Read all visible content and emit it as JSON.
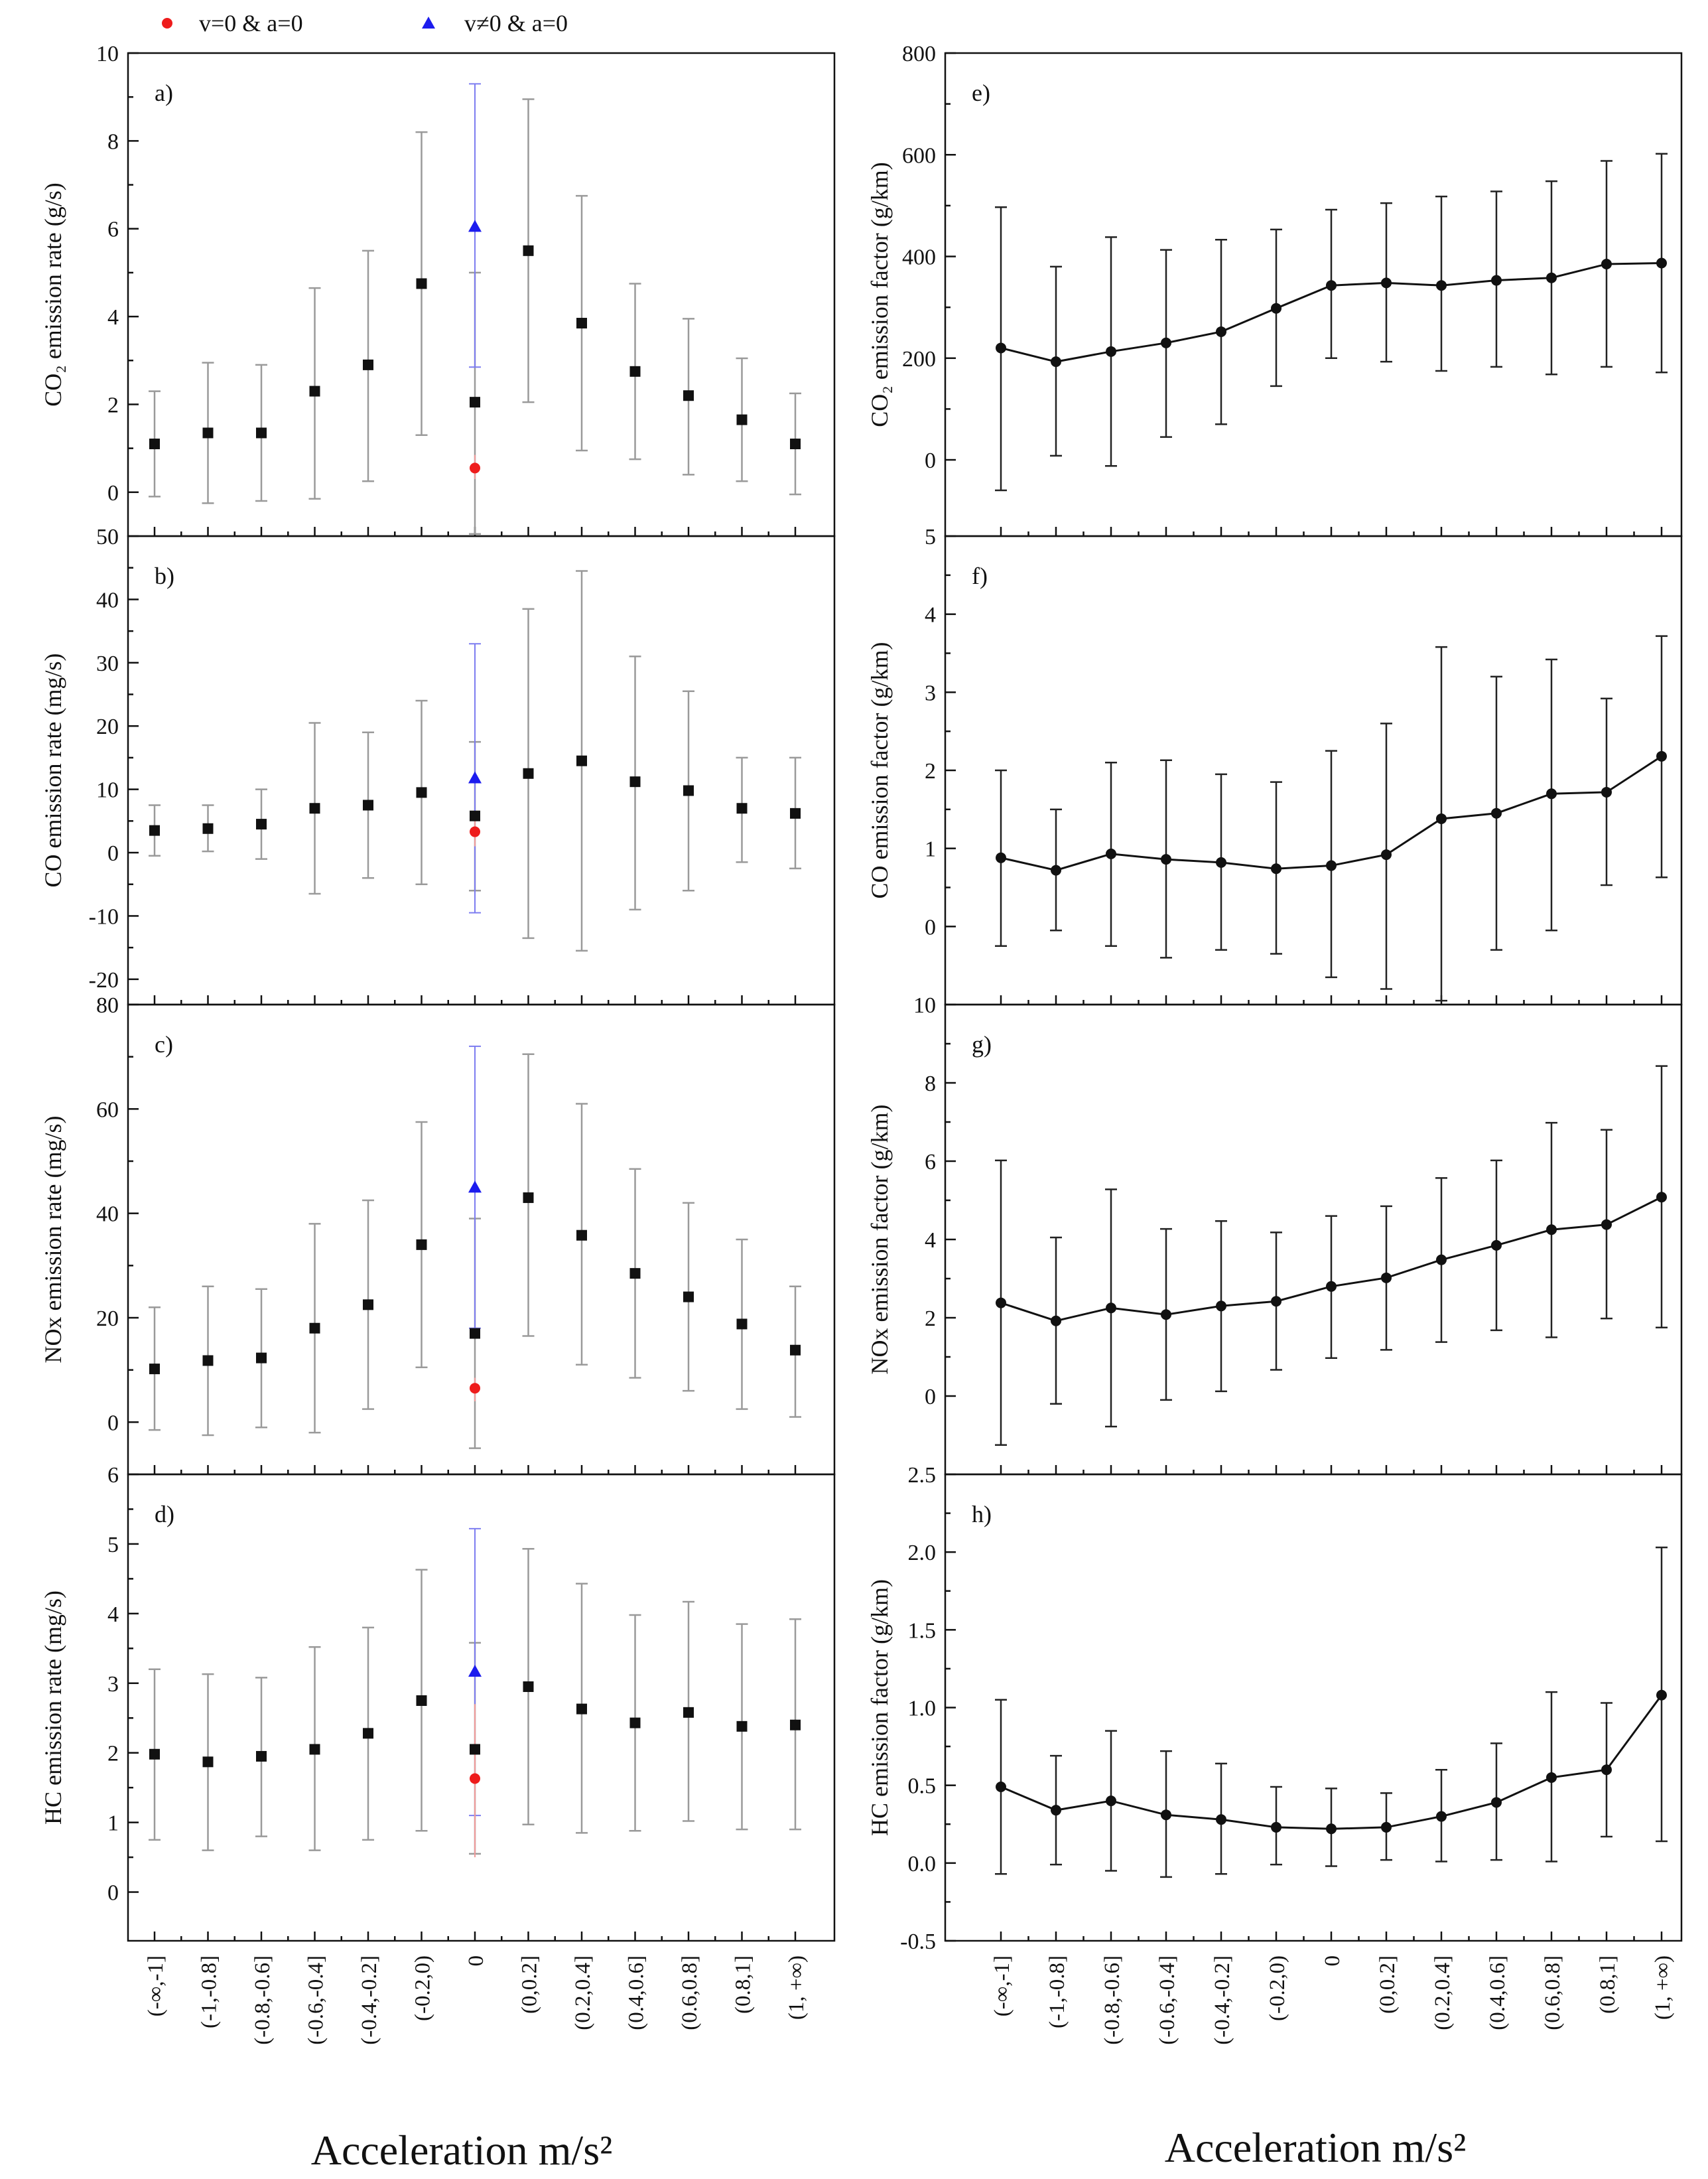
{
  "legend": [
    {
      "label": "v=0 & a=0",
      "color": "#ee1c1c",
      "marker": "circle"
    },
    {
      "label": "v≠0 & a=0",
      "color": "#1c1cee",
      "marker": "triangle"
    }
  ],
  "xlabel_left": "Acceleration  m/s²",
  "xlabel_right": "Acceleration  m/s²",
  "colors": {
    "black_series": "#111111",
    "error_grey": "#9a9a9a",
    "red": "#ee1c1c",
    "blue": "#1c1cee"
  },
  "chart_data": [
    {
      "type": "scatter",
      "panel": "a)",
      "ylabel": "CO₂ emission rate (g/s)",
      "ylim": [
        -1,
        10
      ],
      "yticks": [
        0,
        2,
        4,
        6,
        8,
        10
      ],
      "yticklabels": [
        "0",
        "2",
        "4",
        "6",
        "8",
        "10"
      ],
      "categories": [
        "(-∞,-1]",
        "(-1,-0.8]",
        "(-0.8,-0.6]",
        "(-0.6,-0.4]",
        "(-0.4,-0.2]",
        "(-0.2,0)",
        "0",
        "(0,0.2]",
        "(0.2,0.4]",
        "(0.4,0.6]",
        "(0.6,0.8]",
        "(0.8,1]",
        "(1, +∞)"
      ],
      "values": [
        1.1,
        1.35,
        1.35,
        2.3,
        2.9,
        4.75,
        2.05,
        5.5,
        3.85,
        2.75,
        2.2,
        1.65,
        1.1
      ],
      "err_low": [
        -0.1,
        -0.25,
        -0.2,
        -0.15,
        0.25,
        1.3,
        -0.95,
        2.05,
        0.95,
        0.75,
        0.4,
        0.25,
        -0.05
      ],
      "err_high": [
        2.3,
        2.95,
        2.9,
        4.65,
        5.5,
        8.2,
        5.0,
        8.95,
        6.75,
        4.75,
        3.95,
        3.05,
        2.25
      ],
      "stationary": {
        "value": 0.55,
        "low": 0.3,
        "high": 0.85
      },
      "cruise": {
        "value": 6.05,
        "low": 2.85,
        "high": 9.3
      }
    },
    {
      "type": "scatter",
      "panel": "b)",
      "ylabel": "CO emission rate (mg/s)",
      "ylim": [
        -24,
        50
      ],
      "yticks": [
        -20,
        -10,
        0,
        10,
        20,
        30,
        40,
        50
      ],
      "yticklabels": [
        "-20",
        "-10",
        "0",
        "10",
        "20",
        "30",
        "40",
        "50"
      ],
      "categories": [
        "(-∞,-1]",
        "(-1,-0.8]",
        "(-0.8,-0.6]",
        "(-0.6,-0.4]",
        "(-0.4,-0.2]",
        "(-0.2,0)",
        "0",
        "(0,0.2]",
        "(0.2,0.4]",
        "(0.4,0.6]",
        "(0.6,0.8]",
        "(0.8,1]",
        "(1, +∞)"
      ],
      "values": [
        3.5,
        3.8,
        4.5,
        7.0,
        7.5,
        9.5,
        5.8,
        12.5,
        14.5,
        11.2,
        9.8,
        7.0,
        6.2
      ],
      "err_low": [
        -0.5,
        0.2,
        -1.0,
        -6.5,
        -4.0,
        -5.0,
        -6.0,
        -13.5,
        -15.5,
        -9.0,
        -6.0,
        -1.5,
        -2.5
      ],
      "err_high": [
        7.5,
        7.5,
        10.0,
        20.5,
        19.0,
        24.0,
        17.5,
        38.5,
        44.5,
        31.0,
        25.5,
        15.0,
        15.0
      ],
      "stationary": {
        "value": 3.3,
        "low": 1.0,
        "high": 5.5
      },
      "cruise": {
        "value": 11.8,
        "low": -9.5,
        "high": 33.0
      }
    },
    {
      "type": "scatter",
      "panel": "c)",
      "ylabel": "NOx emission rate (mg/s)",
      "ylim": [
        -10,
        80
      ],
      "yticks": [
        0,
        20,
        40,
        60,
        80
      ],
      "yticklabels": [
        "0",
        "20",
        "40",
        "60",
        "80"
      ],
      "categories": [
        "(-∞,-1]",
        "(-1,-0.8]",
        "(-0.8,-0.6]",
        "(-0.6,-0.4]",
        "(-0.4,-0.2]",
        "(-0.2,0)",
        "0",
        "(0,0.2]",
        "(0.2,0.4]",
        "(0.4,0.6]",
        "(0.6,0.8]",
        "(0.8,1]",
        "(1, +∞)"
      ],
      "values": [
        10.2,
        11.8,
        12.3,
        18.0,
        22.5,
        34.0,
        17.0,
        43.0,
        35.8,
        28.5,
        24.0,
        18.8,
        13.8
      ],
      "err_low": [
        -1.5,
        -2.5,
        -1.0,
        -2.0,
        2.5,
        10.5,
        -5.0,
        16.5,
        11.0,
        8.5,
        6.0,
        2.5,
        1.0
      ],
      "err_high": [
        22.0,
        26.0,
        25.5,
        38.0,
        42.5,
        57.5,
        39.0,
        70.5,
        61.0,
        48.5,
        42.0,
        35.0,
        26.0
      ],
      "stationary": {
        "value": 6.5,
        "low": 4.0,
        "high": 8.5
      },
      "cruise": {
        "value": 45.0,
        "low": 18.0,
        "high": 72.0
      }
    },
    {
      "type": "scatter",
      "panel": "d)",
      "ylabel": "HC emission rate (mg/s)",
      "ylim": [
        -0.7,
        6
      ],
      "yticks": [
        0,
        1,
        2,
        3,
        4,
        5,
        6
      ],
      "yticklabels": [
        "0",
        "1",
        "2",
        "3",
        "4",
        "5",
        "6"
      ],
      "categories": [
        "(-∞,-1]",
        "(-1,-0.8]",
        "(-0.8,-0.6]",
        "(-0.6,-0.4]",
        "(-0.4,-0.2]",
        "(-0.2,0)",
        "0",
        "(0,0.2]",
        "(0.2,0.4]",
        "(0.4,0.6]",
        "(0.6,0.8]",
        "(0.8,1]",
        "(1, +∞)"
      ],
      "values": [
        1.98,
        1.87,
        1.95,
        2.05,
        2.28,
        2.75,
        2.05,
        2.95,
        2.63,
        2.43,
        2.58,
        2.38,
        2.4
      ],
      "err_low": [
        0.75,
        0.6,
        0.8,
        0.6,
        0.75,
        0.88,
        0.55,
        0.97,
        0.85,
        0.88,
        1.02,
        0.9,
        0.9
      ],
      "err_high": [
        3.2,
        3.13,
        3.08,
        3.52,
        3.8,
        4.63,
        3.58,
        4.93,
        4.43,
        3.98,
        4.17,
        3.85,
        3.92
      ],
      "stationary": {
        "value": 1.63,
        "low": 0.5,
        "high": 2.7
      },
      "cruise": {
        "value": 3.17,
        "low": 1.1,
        "high": 5.22
      }
    },
    {
      "type": "line",
      "panel": "e)",
      "ylabel": "CO₂ emission factor (g/km)",
      "ylim": [
        -150,
        800
      ],
      "yticks": [
        0,
        200,
        400,
        600,
        800
      ],
      "yticklabels": [
        "0",
        "200",
        "400",
        "600",
        "800"
      ],
      "categories": [
        "(-∞,-1]",
        "(-1,-0.8]",
        "(-0.8,-0.6]",
        "(-0.6,-0.4]",
        "(-0.4,-0.2]",
        "(-0.2,0)",
        "0",
        "(0,0.2]",
        "(0.2,0.4]",
        "(0.4,0.6]",
        "(0.6,0.8]",
        "(0.8,1]",
        "(1, +∞)"
      ],
      "values": [
        220,
        193,
        213,
        230,
        252,
        298,
        343,
        348,
        343,
        353,
        358,
        385,
        387
      ],
      "err_low": [
        -60,
        8,
        -12,
        45,
        70,
        145,
        200,
        193,
        175,
        183,
        168,
        183,
        172
      ],
      "err_high": [
        497,
        380,
        438,
        413,
        433,
        453,
        492,
        505,
        518,
        528,
        548,
        588,
        602
      ]
    },
    {
      "type": "line",
      "panel": "f)",
      "ylabel": "CO emission factor (g/km)",
      "ylim": [
        -1,
        5
      ],
      "yticks": [
        0,
        1,
        2,
        3,
        4,
        5
      ],
      "yticklabels": [
        "0",
        "1",
        "2",
        "3",
        "4",
        "5"
      ],
      "categories": [
        "(-∞,-1]",
        "(-1,-0.8]",
        "(-0.8,-0.6]",
        "(-0.6,-0.4]",
        "(-0.4,-0.2]",
        "(-0.2,0)",
        "0",
        "(0,0.2]",
        "(0.2,0.4]",
        "(0.4,0.6]",
        "(0.6,0.8]",
        "(0.8,1]",
        "(1, +∞)"
      ],
      "values": [
        0.88,
        0.72,
        0.93,
        0.86,
        0.82,
        0.74,
        0.78,
        0.92,
        1.38,
        1.45,
        1.7,
        1.72,
        2.18
      ],
      "err_low": [
        -0.25,
        -0.05,
        -0.25,
        -0.4,
        -0.3,
        -0.35,
        -0.65,
        -0.8,
        -0.95,
        -0.3,
        -0.05,
        0.53,
        0.63
      ],
      "err_high": [
        2.0,
        1.5,
        2.1,
        2.13,
        1.95,
        1.85,
        2.25,
        2.6,
        3.58,
        3.2,
        3.42,
        2.92,
        3.72
      ]
    },
    {
      "type": "line",
      "panel": "g)",
      "ylabel": "NOx emission factor (g/km)",
      "ylim": [
        -2,
        10
      ],
      "yticks": [
        0,
        2,
        4,
        6,
        8,
        10
      ],
      "yticklabels": [
        "0",
        "2",
        "4",
        "6",
        "8",
        "10"
      ],
      "categories": [
        "(-∞,-1]",
        "(-1,-0.8]",
        "(-0.8,-0.6]",
        "(-0.6,-0.4]",
        "(-0.4,-0.2]",
        "(-0.2,0)",
        "0",
        "(0,0.2]",
        "(0.2,0.4]",
        "(0.4,0.6]",
        "(0.6,0.8]",
        "(0.8,1]",
        "(1, +∞)"
      ],
      "values": [
        2.38,
        1.92,
        2.25,
        2.08,
        2.3,
        2.42,
        2.8,
        3.02,
        3.48,
        3.85,
        4.25,
        4.38,
        5.08
      ],
      "err_low": [
        -1.25,
        -0.2,
        -0.78,
        -0.1,
        0.12,
        0.67,
        0.97,
        1.18,
        1.38,
        1.68,
        1.5,
        1.98,
        1.75
      ],
      "err_high": [
        6.02,
        4.05,
        5.28,
        4.27,
        4.47,
        4.18,
        4.6,
        4.85,
        5.57,
        6.02,
        6.98,
        6.8,
        8.43
      ]
    },
    {
      "type": "line",
      "panel": "h)",
      "ylabel": "HC emission factor (g/km)",
      "ylim": [
        -0.5,
        2.5
      ],
      "yticks": [
        -0.5,
        0.0,
        0.5,
        1.0,
        1.5,
        2.0,
        2.5
      ],
      "yticklabels": [
        "-0.5",
        "0.0",
        "0.5",
        "1.0",
        "1.5",
        "2.0",
        "2.5"
      ],
      "categories": [
        "(-∞,-1]",
        "(-1,-0.8]",
        "(-0.8,-0.6]",
        "(-0.6,-0.4]",
        "(-0.4,-0.2]",
        "(-0.2,0)",
        "0",
        "(0,0.2]",
        "(0.2,0.4]",
        "(0.4,0.6]",
        "(0.6,0.8]",
        "(0.8,1]",
        "(1, +∞)"
      ],
      "values": [
        0.49,
        0.34,
        0.4,
        0.31,
        0.28,
        0.23,
        0.22,
        0.23,
        0.3,
        0.39,
        0.55,
        0.6,
        1.08
      ],
      "err_low": [
        -0.07,
        -0.01,
        -0.05,
        -0.09,
        -0.07,
        -0.01,
        -0.02,
        0.02,
        0.01,
        0.02,
        0.01,
        0.17,
        0.14
      ],
      "err_high": [
        1.05,
        0.69,
        0.85,
        0.72,
        0.64,
        0.49,
        0.48,
        0.45,
        0.6,
        0.77,
        1.1,
        1.03,
        2.03
      ]
    }
  ]
}
